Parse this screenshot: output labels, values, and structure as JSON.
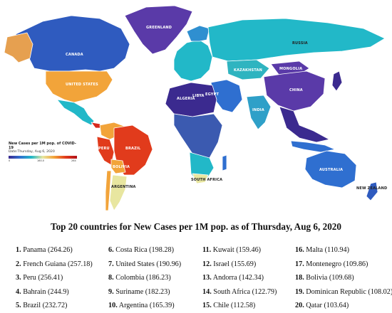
{
  "legend": {
    "title": "New Cases per 1M pop. of COVID-19",
    "date": "Date:Thursday, Aug 6, 2020",
    "ticks": [
      "0",
      "160.0",
      "264"
    ]
  },
  "map_labels": {
    "greenland": "GREENLAND",
    "canada": "CANADA",
    "united_states": "UNITED STATES",
    "russia": "RUSSIA",
    "kazakhstan": "KAZAKHSTAN",
    "mongolia": "MONGOLIA",
    "china": "CHINA",
    "india": "INDIA",
    "brazil": "BRAZIL",
    "peru": "PERU",
    "bolivia": "BOLIVIA",
    "argentina": "ARGENTINA",
    "algeria": "ALGERIA",
    "libya": "LIBYA",
    "egypt": "EGYPT",
    "south_africa": "SOUTH AFRICA",
    "australia": "AUSTRALIA",
    "new_zealand": "NEW ZEALAND"
  },
  "colors": {
    "low": "#3b2a8f",
    "low_mid": "#2f6fd0",
    "mid": "#22b8c8",
    "pale": "#e8e6a0",
    "orange": "#f2a43a",
    "high": "#e13b1c"
  },
  "title": "Top 20 countries for New Cases per 1M pop. as of Thursday, Aug 6, 2020",
  "ranking": [
    {
      "rank": "1.",
      "text": "Panama (264.26)"
    },
    {
      "rank": "2.",
      "text": "French Guiana (257.18)"
    },
    {
      "rank": "3.",
      "text": "Peru (256.41)"
    },
    {
      "rank": "4.",
      "text": "Bahrain (244.9)"
    },
    {
      "rank": "5.",
      "text": "Brazil (232.72)"
    },
    {
      "rank": "6.",
      "text": "Costa Rica (198.28)"
    },
    {
      "rank": "7.",
      "text": "United States (190.96)"
    },
    {
      "rank": "8.",
      "text": "Colombia (186.23)"
    },
    {
      "rank": "9.",
      "text": "Suriname (182.23)"
    },
    {
      "rank": "10.",
      "text": "Argentina (165.39)"
    },
    {
      "rank": "11.",
      "text": "Kuwait (159.46)"
    },
    {
      "rank": "12.",
      "text": "Israel (155.69)"
    },
    {
      "rank": "13.",
      "text": "Andorra (142.34)"
    },
    {
      "rank": "14.",
      "text": "South Africa (122.79)"
    },
    {
      "rank": "15.",
      "text": "Chile (112.58)"
    },
    {
      "rank": "16.",
      "text": "Malta (110.94)"
    },
    {
      "rank": "17.",
      "text": "Montenegro (109.86)"
    },
    {
      "rank": "18.",
      "text": "Bolivia (109.68)"
    },
    {
      "rank": "19.",
      "text": "Dominican Republic (108.02)"
    },
    {
      "rank": "20.",
      "text": "Qatar (103.64)"
    }
  ]
}
